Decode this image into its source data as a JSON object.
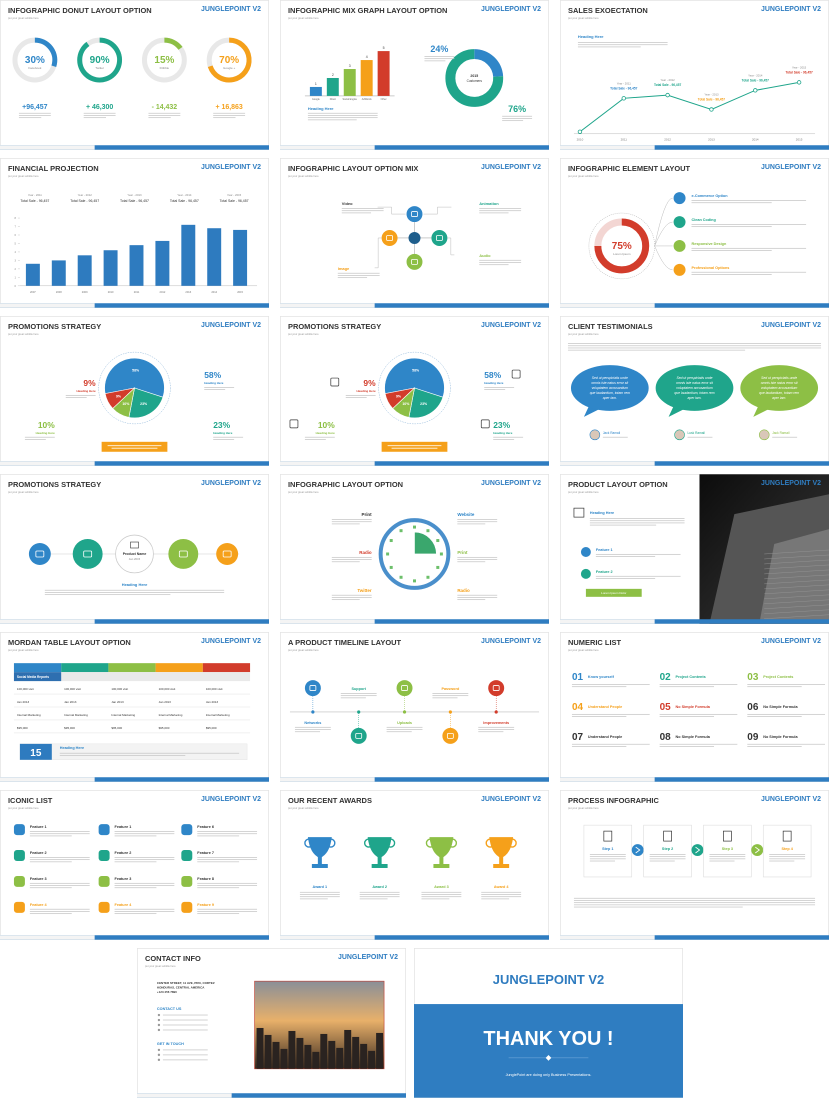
{
  "brand": "JUNGLEPOINT V2",
  "subtitle": "put your great subtitle here",
  "slides": [
    {
      "title": "INFOGRAPHIC DONUT LAYOUT OPTION",
      "donuts": [
        {
          "value": "30%",
          "label": "Facebook",
          "change": "+96,457"
        },
        {
          "value": "90%",
          "label": "Twitter",
          "change": "+ 46,300"
        },
        {
          "value": "15%",
          "label": "Dribble",
          "change": "- 14,432"
        },
        {
          "value": "70%",
          "label": "Google +",
          "change": "+ 16,863"
        }
      ]
    },
    {
      "title": "INFOGRAPHIC MIX GRAPH LAYOUT OPTION",
      "bars": {
        "values": [
          1,
          2,
          3,
          4,
          5
        ],
        "categories": [
          "Google",
          "Direct",
          "Social Engine",
          "AdWords",
          "Other"
        ]
      },
      "heading": "Heading Here",
      "share": [
        "24%",
        "76%"
      ],
      "center": [
        "2015",
        "Customers"
      ]
    },
    {
      "title": "SALES EXOECTATION",
      "heading": "Heading Here",
      "years": [
        "2010",
        "2011",
        "2012",
        "2013",
        "2014",
        "2015"
      ],
      "values": [
        0,
        42,
        46,
        28,
        52,
        62
      ],
      "notes": [
        {
          "year": "Year - 2011",
          "total": "Total Sale - 96,457"
        },
        {
          "year": "Year - 2012",
          "total": "Total Sale - 96,457"
        },
        {
          "year": "Year - 2013",
          "total": "Total Sale - 96,457"
        },
        {
          "year": "Year - 2014",
          "total": "Total Sale - 96,457"
        },
        {
          "year": "Year - 2015",
          "total": "Total Sale - 96,457"
        }
      ]
    },
    {
      "title": "FINANCIAL PROJECTION",
      "notes": [
        {
          "year": "Year - 2011",
          "total": "Total Sale - 96,457"
        },
        {
          "year": "Year - 2012",
          "total": "Total Sale - 96,457"
        },
        {
          "year": "Year - 2013",
          "total": "Total Sale - 96,457"
        },
        {
          "year": "Year - 2014",
          "total": "Total Sale - 96,457"
        },
        {
          "year": "Year - 2015",
          "total": "Total Sale - 96,457"
        }
      ],
      "years": [
        "2007",
        "2008",
        "2009",
        "2010",
        "2011",
        "2012",
        "2013",
        "2014",
        "2015"
      ],
      "values": [
        2.6,
        3,
        3.6,
        4.2,
        4.8,
        5.3,
        7.2,
        6.8,
        6.6
      ],
      "ylim": [
        0,
        8
      ],
      "yticks": [
        0,
        1,
        2,
        3,
        4,
        5,
        6,
        7,
        8
      ]
    },
    {
      "title": "INFOGRAPHIC LAYOUT OPTION MIX",
      "labels": [
        "Video",
        "Animation",
        "Image",
        "Audio"
      ]
    },
    {
      "title": "INFOGRAPHIC ELEMENT LAYOUT",
      "value": "75%",
      "caption": "Lorem Ipsum",
      "items": [
        "e-Commerce Option",
        "Clean Coding",
        "Responsive Design",
        "Professional Options"
      ]
    },
    {
      "title": "PROMOTIONS STRATEGY",
      "slices": [
        "58%",
        "23%",
        "10%",
        "9%"
      ],
      "heading": "Heading Here"
    },
    {
      "title": "PROMOTIONS STRATEGY",
      "slices": [
        "58%",
        "23%",
        "10%",
        "9%"
      ],
      "heading": "Heading Here"
    },
    {
      "title": "CLIENT TESTIMONIALS",
      "quotes": [
        {
          "lines": [
            "Sed ut perspiciatis unde",
            "omnis iste natus error sit",
            "voluptatem accusantium",
            "que laudantium, totam rem",
            "aper iam."
          ],
          "name": "Jack Ramail"
        },
        {
          "lines": [
            "Sed ut perspiciatis unde",
            "omnis iste natus error sit",
            "voluptatem accusantium",
            "que laudantium, totam rem",
            "aper iam."
          ],
          "name": "Lusk Ramail"
        },
        {
          "lines": [
            "Sed ut perspiciatis unde",
            "omnis iste natus error sit",
            "voluptatem accusantium",
            "que laudantium, totam rem",
            "aper iam."
          ],
          "name": "Jack Ramail"
        }
      ]
    },
    {
      "title": "PROMOTIONS STRATEGY",
      "center": [
        "Product Name",
        "Jan 2015"
      ],
      "heading": "Heading Here"
    },
    {
      "title": "INFOGRAPHIC LAYOUT OPTION",
      "left": [
        "Print",
        "Radio",
        "Twitter"
      ],
      "right": [
        "Website",
        "Print",
        "Radio"
      ]
    },
    {
      "title": "PRODUCT LAYOUT OPTION",
      "heading": "Heading Here",
      "features": [
        "Feature 1",
        "Feature 2"
      ],
      "button": "Lorem Ipsum Dolor"
    },
    {
      "title": "MORDAN TABLE LAYOUT OPTION",
      "table": {
        "header": "Social Media Reports",
        "rows": [
          [
            "100,000 visit",
            "100,000 visit",
            "100,000 visit",
            "100,000 visit",
            "100,000 visit"
          ],
          [
            "Jan 2013",
            "Jan 2013",
            "Jan 2013",
            "Jan 2013",
            "Jan 2013"
          ],
          [
            "Internal Marketing",
            "Internal Marketing",
            "Internal Marketing",
            "Internal Marketing",
            "Internal Marketing"
          ],
          [
            "$95,000",
            "$95,000",
            "$95,000",
            "$95,000",
            "$95,000"
          ]
        ]
      },
      "number": "15",
      "heading": "Heading Here"
    },
    {
      "title": "A PRODUCT TIMELINE LAYOUT",
      "steps": [
        "Networks",
        "Support",
        "Uploads",
        "Password",
        "Improvements"
      ]
    },
    {
      "title": "NUMERIC LIST",
      "items": [
        {
          "number": "01",
          "label": "Know yourself"
        },
        {
          "number": "02",
          "label": "Project Contents"
        },
        {
          "number": "03",
          "label": "Project Contents"
        },
        {
          "number": "04",
          "label": "Understand People"
        },
        {
          "number": "05",
          "label": "No Simple Formula"
        },
        {
          "number": "06",
          "label": "No Simple Formula"
        },
        {
          "number": "07",
          "label": "Understand People"
        },
        {
          "number": "08",
          "label": "No Simple Formula"
        },
        {
          "number": "09",
          "label": "No Simple Formula"
        }
      ]
    },
    {
      "title": "ICONIC LIST",
      "columns": [
        [
          "Feature 1",
          "Feature 2",
          "Feature 3",
          "Feature 4"
        ],
        [
          "Feature 1",
          "Feature 2",
          "Feature 3",
          "Feature 4"
        ],
        [
          "Feature 6",
          "Feature 7",
          "Feature 8",
          "Feature 9"
        ]
      ]
    },
    {
      "title": "OUR RECENT AWARDS",
      "awards": [
        "Award 1",
        "Award 2",
        "Award 3",
        "Award 4"
      ]
    },
    {
      "title": "PROCESS INFOGRAPHIC",
      "steps": [
        "Step 1",
        "Step 2",
        "Step 3",
        "Step 4"
      ]
    },
    {
      "title": "CONTACT INFO",
      "address": [
        "CENTER STREET, 11 AVE, PRO, CORTEZ",
        "HONDURAS, CENTRAL AMERICA",
        "+123 456 7890"
      ],
      "contact": "CONTACT US",
      "touch": "GET IN TOUCH"
    },
    {
      "title": "THANK YOU !",
      "tagline": "JunglePoint are doing only Business Presentations."
    }
  ]
}
